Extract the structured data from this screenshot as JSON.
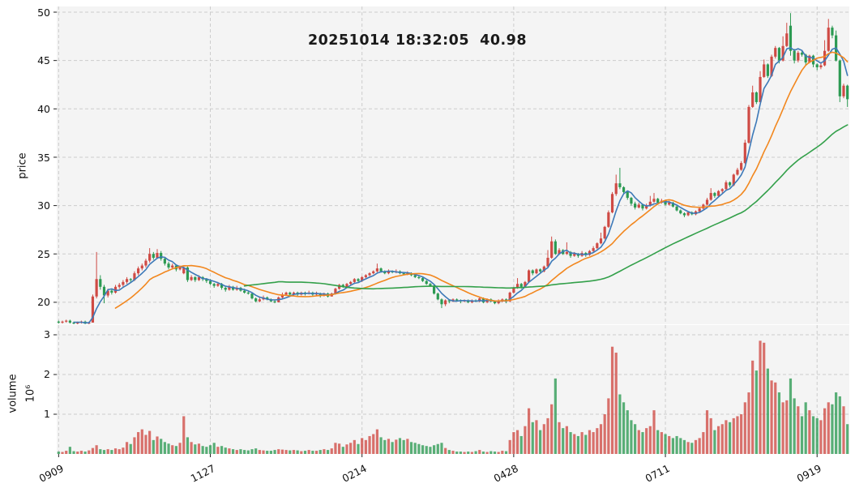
{
  "title": "20251014 18:32:05  40.98",
  "axes": {
    "price": {
      "label": "price",
      "ticks": [
        "20",
        "25",
        "30",
        "35",
        "40",
        "45",
        "50"
      ],
      "range": [
        17.5,
        50.6
      ]
    },
    "volume": {
      "label": "volume",
      "offset": "10⁶",
      "ticks": [
        "1",
        "2",
        "3"
      ],
      "range": [
        0,
        3.25
      ]
    },
    "x": {
      "labels": [
        "0909",
        "1127",
        "0214",
        "0428",
        "0711",
        "0919"
      ],
      "tick_indices": [
        0,
        40,
        80,
        120,
        160,
        200
      ]
    }
  },
  "colors": {
    "up": "#cf4a44",
    "down": "#2b9a52",
    "ma_fast": "#3d79b8",
    "ma_mid": "#f2871e",
    "ma_slow": "#33a04a",
    "panel_bg": "#f4f4f4",
    "grid": "#cccccc",
    "tick": "#222222",
    "volume_opacity": 0.78
  },
  "chart_data": {
    "type": "candlestick",
    "title": "20251014 18:32:05  40.98",
    "panels": [
      "price",
      "volume"
    ],
    "legend": "none",
    "grid": "dashed",
    "moving_averages": [
      {
        "name": "ma-fast",
        "window": 5,
        "color_key": "ma_fast"
      },
      {
        "name": "ma-mid",
        "window": 16,
        "color_key": "ma_mid"
      },
      {
        "name": "ma-slow",
        "window": 50,
        "color_key": "ma_slow"
      }
    ],
    "last_price": 40.98,
    "ohlc": [
      [
        18.0,
        18.1,
        17.8,
        17.9
      ],
      [
        17.9,
        18.1,
        17.8,
        18.0
      ],
      [
        18.0,
        18.2,
        17.9,
        18.1
      ],
      [
        18.1,
        18.2,
        17.8,
        17.9
      ],
      [
        17.9,
        18.0,
        17.7,
        17.8
      ],
      [
        17.8,
        18.0,
        17.7,
        17.9
      ],
      [
        17.9,
        18.1,
        17.8,
        18.0
      ],
      [
        18.0,
        18.1,
        17.7,
        17.8
      ],
      [
        17.8,
        18.0,
        17.7,
        17.9
      ],
      [
        17.9,
        20.8,
        17.9,
        20.6
      ],
      [
        20.6,
        25.2,
        20.4,
        22.4
      ],
      [
        22.4,
        22.8,
        21.3,
        21.6
      ],
      [
        21.6,
        21.8,
        19.9,
        20.7
      ],
      [
        20.7,
        21.4,
        20.5,
        21.2
      ],
      [
        21.2,
        21.4,
        20.8,
        21.0
      ],
      [
        21.0,
        21.8,
        20.9,
        21.6
      ],
      [
        21.6,
        22.0,
        21.4,
        21.8
      ],
      [
        21.8,
        22.3,
        21.6,
        22.1
      ],
      [
        22.1,
        22.6,
        21.9,
        22.4
      ],
      [
        22.4,
        22.5,
        22.0,
        22.3
      ],
      [
        22.3,
        23.2,
        22.2,
        23.0
      ],
      [
        23.0,
        23.7,
        22.8,
        23.5
      ],
      [
        23.5,
        24.0,
        23.3,
        23.8
      ],
      [
        23.8,
        24.5,
        23.6,
        24.3
      ],
      [
        24.3,
        25.6,
        24.1,
        25.0
      ],
      [
        25.0,
        25.2,
        24.4,
        24.6
      ],
      [
        24.6,
        25.5,
        24.5,
        25.1
      ],
      [
        25.1,
        25.3,
        24.3,
        24.5
      ],
      [
        24.5,
        24.7,
        23.8,
        24.0
      ],
      [
        24.0,
        24.2,
        23.4,
        23.6
      ],
      [
        23.6,
        24.0,
        23.4,
        23.8
      ],
      [
        23.8,
        23.9,
        23.2,
        23.4
      ],
      [
        23.4,
        23.8,
        23.3,
        23.6
      ],
      [
        23.0,
        23.7,
        22.9,
        23.6
      ],
      [
        23.6,
        23.7,
        22.1,
        22.3
      ],
      [
        22.3,
        22.8,
        22.2,
        22.6
      ],
      [
        22.6,
        22.7,
        22.1,
        22.3
      ],
      [
        22.3,
        22.8,
        22.2,
        22.6
      ],
      [
        22.6,
        22.7,
        22.2,
        22.4
      ],
      [
        22.4,
        22.5,
        22.0,
        22.2
      ],
      [
        22.2,
        22.4,
        21.8,
        21.9
      ],
      [
        21.9,
        22.0,
        21.5,
        21.7
      ],
      [
        21.7,
        22.1,
        21.6,
        21.9
      ],
      [
        21.9,
        22.0,
        21.3,
        21.5
      ],
      [
        21.5,
        21.6,
        21.1,
        21.3
      ],
      [
        21.3,
        21.8,
        21.2,
        21.6
      ],
      [
        21.6,
        21.7,
        21.2,
        21.3
      ],
      [
        21.3,
        21.7,
        21.2,
        21.5
      ],
      [
        21.5,
        21.6,
        21.1,
        21.2
      ],
      [
        21.2,
        21.4,
        20.9,
        21.0
      ],
      [
        21.0,
        21.2,
        20.8,
        20.9
      ],
      [
        20.9,
        21.0,
        20.3,
        20.4
      ],
      [
        20.4,
        20.5,
        20.0,
        20.1
      ],
      [
        20.1,
        20.5,
        20.0,
        20.3
      ],
      [
        20.3,
        20.7,
        20.2,
        20.5
      ],
      [
        20.5,
        20.6,
        20.2,
        20.3
      ],
      [
        20.3,
        20.4,
        20.0,
        20.1
      ],
      [
        20.1,
        20.3,
        19.9,
        20.0
      ],
      [
        20.0,
        20.6,
        20.0,
        20.5
      ],
      [
        20.5,
        21.0,
        20.4,
        20.8
      ],
      [
        20.8,
        21.1,
        20.7,
        21.0
      ],
      [
        21.0,
        21.1,
        20.7,
        20.8
      ],
      [
        20.8,
        21.1,
        20.7,
        21.0
      ],
      [
        21.0,
        21.1,
        20.6,
        20.8
      ],
      [
        20.8,
        21.1,
        20.7,
        21.0
      ],
      [
        21.0,
        21.1,
        20.7,
        20.9
      ],
      [
        20.9,
        21.2,
        20.8,
        21.0
      ],
      [
        21.0,
        21.1,
        20.6,
        20.8
      ],
      [
        20.8,
        21.1,
        20.7,
        20.9
      ],
      [
        20.9,
        21.0,
        20.5,
        20.7
      ],
      [
        20.7,
        21.0,
        20.6,
        20.9
      ],
      [
        20.9,
        21.0,
        20.5,
        20.6
      ],
      [
        20.6,
        21.0,
        20.6,
        20.9
      ],
      [
        20.9,
        21.5,
        20.8,
        21.4
      ],
      [
        21.4,
        21.9,
        21.3,
        21.8
      ],
      [
        21.8,
        21.9,
        21.5,
        21.6
      ],
      [
        21.6,
        22.0,
        21.5,
        21.9
      ],
      [
        21.9,
        22.2,
        21.8,
        22.1
      ],
      [
        22.1,
        22.5,
        22.0,
        22.4
      ],
      [
        22.4,
        22.5,
        22.1,
        22.2
      ],
      [
        22.2,
        22.7,
        22.1,
        22.6
      ],
      [
        22.6,
        22.9,
        22.5,
        22.8
      ],
      [
        22.8,
        23.1,
        22.7,
        23.0
      ],
      [
        23.0,
        23.3,
        22.9,
        23.2
      ],
      [
        23.2,
        24.0,
        23.1,
        23.5
      ],
      [
        23.5,
        23.6,
        23.1,
        23.2
      ],
      [
        23.2,
        23.3,
        22.9,
        23.0
      ],
      [
        23.0,
        23.4,
        22.9,
        23.2
      ],
      [
        23.2,
        23.3,
        23.0,
        23.1
      ],
      [
        23.1,
        23.4,
        23.0,
        23.2
      ],
      [
        23.2,
        23.3,
        22.9,
        23.0
      ],
      [
        23.0,
        23.1,
        22.8,
        22.9
      ],
      [
        22.9,
        23.2,
        22.8,
        23.0
      ],
      [
        23.0,
        23.1,
        22.7,
        22.8
      ],
      [
        22.8,
        22.9,
        22.5,
        22.6
      ],
      [
        22.6,
        22.8,
        22.4,
        22.5
      ],
      [
        22.5,
        22.6,
        22.1,
        22.2
      ],
      [
        22.2,
        22.3,
        21.8,
        21.9
      ],
      [
        21.9,
        22.0,
        21.6,
        21.7
      ],
      [
        21.7,
        21.8,
        20.8,
        20.9
      ],
      [
        20.9,
        21.0,
        20.2,
        20.3
      ],
      [
        20.3,
        20.4,
        19.4,
        19.8
      ],
      [
        19.8,
        20.3,
        19.6,
        20.2
      ],
      [
        20.2,
        20.3,
        19.9,
        20.1
      ],
      [
        20.1,
        20.4,
        20.0,
        20.3
      ],
      [
        20.3,
        20.4,
        20.1,
        20.2
      ],
      [
        20.2,
        20.3,
        19.9,
        20.1
      ],
      [
        20.1,
        20.3,
        20.0,
        20.2
      ],
      [
        20.2,
        20.3,
        19.9,
        20.0
      ],
      [
        20.0,
        20.3,
        19.9,
        20.2
      ],
      [
        20.2,
        20.3,
        20.0,
        20.1
      ],
      [
        20.1,
        20.5,
        20.0,
        20.4
      ],
      [
        20.4,
        20.5,
        19.9,
        20.0
      ],
      [
        20.0,
        20.4,
        19.9,
        20.3
      ],
      [
        20.3,
        20.4,
        20.0,
        20.1
      ],
      [
        20.1,
        20.2,
        19.8,
        19.9
      ],
      [
        19.9,
        20.3,
        19.8,
        20.2
      ],
      [
        20.2,
        20.4,
        20.0,
        20.3
      ],
      [
        20.3,
        20.4,
        19.9,
        20.1
      ],
      [
        20.1,
        21.1,
        20.0,
        21.0
      ],
      [
        21.0,
        21.6,
        20.9,
        21.5
      ],
      [
        21.5,
        22.5,
        21.4,
        21.9
      ],
      [
        21.9,
        22.0,
        21.4,
        21.6
      ],
      [
        21.6,
        22.2,
        21.5,
        22.1
      ],
      [
        22.1,
        23.4,
        22.0,
        23.3
      ],
      [
        23.3,
        23.4,
        22.8,
        23.0
      ],
      [
        23.0,
        23.5,
        22.9,
        23.4
      ],
      [
        23.4,
        23.5,
        23.0,
        23.2
      ],
      [
        23.2,
        23.8,
        23.1,
        23.7
      ],
      [
        23.7,
        25.4,
        23.6,
        24.6
      ],
      [
        24.6,
        26.8,
        24.5,
        26.3
      ],
      [
        26.3,
        26.5,
        24.9,
        25.0
      ],
      [
        25.0,
        25.6,
        24.9,
        25.4
      ],
      [
        25.4,
        25.5,
        24.9,
        25.0
      ],
      [
        25.0,
        26.2,
        24.9,
        25.2
      ],
      [
        25.2,
        25.3,
        24.6,
        24.8
      ],
      [
        24.8,
        25.2,
        24.7,
        25.0
      ],
      [
        25.0,
        25.1,
        24.6,
        24.8
      ],
      [
        24.8,
        25.3,
        24.7,
        25.1
      ],
      [
        25.1,
        25.2,
        24.7,
        24.9
      ],
      [
        24.9,
        25.4,
        24.8,
        25.3
      ],
      [
        25.3,
        25.8,
        25.2,
        25.6
      ],
      [
        25.6,
        26.2,
        25.5,
        26.1
      ],
      [
        26.1,
        27.2,
        26.0,
        26.6
      ],
      [
        26.6,
        27.9,
        26.5,
        27.8
      ],
      [
        27.8,
        29.5,
        27.7,
        29.3
      ],
      [
        29.3,
        31.4,
        29.2,
        31.2
      ],
      [
        31.2,
        33.2,
        31.0,
        32.3
      ],
      [
        32.3,
        33.9,
        31.7,
        31.9
      ],
      [
        31.9,
        32.0,
        31.2,
        31.4
      ],
      [
        31.4,
        31.5,
        30.6,
        30.8
      ],
      [
        30.8,
        30.9,
        30.0,
        30.2
      ],
      [
        30.2,
        30.4,
        29.6,
        29.8
      ],
      [
        29.8,
        30.3,
        29.7,
        30.1
      ],
      [
        30.1,
        30.2,
        29.5,
        29.7
      ],
      [
        29.7,
        30.2,
        29.6,
        30.0
      ],
      [
        30.0,
        31.0,
        29.9,
        30.4
      ],
      [
        30.4,
        31.3,
        30.3,
        30.7
      ],
      [
        30.7,
        30.8,
        30.1,
        30.3
      ],
      [
        30.3,
        30.7,
        30.2,
        30.5
      ],
      [
        30.5,
        30.6,
        30.0,
        30.1
      ],
      [
        30.1,
        30.5,
        30.0,
        30.3
      ],
      [
        30.3,
        30.4,
        29.8,
        29.9
      ],
      [
        29.9,
        30.0,
        29.4,
        29.5
      ],
      [
        29.5,
        29.6,
        29.1,
        29.2
      ],
      [
        29.2,
        29.3,
        28.8,
        29.0
      ],
      [
        29.0,
        29.4,
        28.9,
        29.3
      ],
      [
        29.3,
        29.4,
        29.0,
        29.1
      ],
      [
        29.1,
        29.5,
        29.0,
        29.4
      ],
      [
        29.4,
        29.8,
        29.3,
        29.7
      ],
      [
        29.7,
        30.2,
        29.6,
        30.1
      ],
      [
        30.1,
        30.8,
        30.0,
        30.6
      ],
      [
        30.6,
        31.8,
        30.5,
        31.3
      ],
      [
        31.3,
        31.4,
        30.8,
        31.0
      ],
      [
        31.0,
        31.6,
        30.9,
        31.5
      ],
      [
        31.5,
        31.8,
        31.3,
        31.7
      ],
      [
        31.7,
        32.6,
        31.6,
        32.4
      ],
      [
        32.4,
        32.5,
        31.9,
        32.1
      ],
      [
        32.1,
        33.3,
        32.0,
        33.2
      ],
      [
        33.2,
        33.9,
        33.1,
        33.7
      ],
      [
        33.7,
        34.6,
        33.6,
        34.4
      ],
      [
        34.4,
        36.8,
        34.3,
        36.5
      ],
      [
        36.5,
        40.4,
        36.4,
        40.2
      ],
      [
        40.2,
        42.4,
        40.1,
        41.7
      ],
      [
        41.7,
        41.8,
        40.5,
        40.7
      ],
      [
        40.7,
        43.9,
        40.6,
        43.3
      ],
      [
        43.3,
        45.1,
        43.2,
        44.6
      ],
      [
        44.6,
        44.7,
        43.2,
        43.4
      ],
      [
        43.4,
        45.6,
        43.3,
        45.4
      ],
      [
        45.4,
        46.5,
        45.2,
        46.3
      ],
      [
        46.3,
        46.4,
        44.7,
        45.0
      ],
      [
        45.0,
        47.5,
        44.9,
        46.5
      ],
      [
        46.5,
        48.9,
        46.4,
        47.8
      ],
      [
        48.6,
        49.9,
        45.5,
        46.0
      ],
      [
        46.0,
        46.2,
        44.7,
        45.0
      ],
      [
        45.0,
        46.0,
        44.8,
        45.8
      ],
      [
        45.8,
        46.1,
        45.4,
        45.6
      ],
      [
        45.6,
        45.7,
        44.5,
        44.8
      ],
      [
        44.8,
        45.6,
        44.7,
        45.5
      ],
      [
        45.5,
        45.6,
        44.3,
        44.6
      ],
      [
        44.6,
        44.7,
        44.0,
        44.3
      ],
      [
        44.3,
        44.8,
        44.1,
        44.5
      ],
      [
        44.5,
        47.1,
        44.4,
        46.0
      ],
      [
        46.0,
        49.3,
        45.9,
        48.4
      ],
      [
        48.4,
        48.6,
        47.3,
        47.6
      ],
      [
        47.6,
        48.1,
        44.9,
        45.0
      ],
      [
        45.0,
        45.1,
        40.7,
        41.3
      ],
      [
        41.3,
        42.6,
        41.1,
        42.4
      ],
      [
        42.4,
        42.5,
        40.2,
        41.0
      ]
    ],
    "volume_millions": [
      0.06,
      0.05,
      0.08,
      0.18,
      0.07,
      0.06,
      0.08,
      0.06,
      0.09,
      0.15,
      0.22,
      0.12,
      0.1,
      0.12,
      0.1,
      0.14,
      0.12,
      0.16,
      0.3,
      0.25,
      0.42,
      0.55,
      0.62,
      0.48,
      0.58,
      0.35,
      0.44,
      0.38,
      0.3,
      0.26,
      0.22,
      0.2,
      0.28,
      0.95,
      0.42,
      0.3,
      0.24,
      0.26,
      0.2,
      0.18,
      0.22,
      0.28,
      0.18,
      0.2,
      0.16,
      0.14,
      0.12,
      0.1,
      0.12,
      0.1,
      0.09,
      0.12,
      0.14,
      0.1,
      0.09,
      0.08,
      0.08,
      0.1,
      0.12,
      0.11,
      0.1,
      0.09,
      0.1,
      0.09,
      0.07,
      0.08,
      0.1,
      0.08,
      0.08,
      0.1,
      0.12,
      0.1,
      0.14,
      0.28,
      0.26,
      0.18,
      0.24,
      0.28,
      0.35,
      0.25,
      0.4,
      0.35,
      0.45,
      0.5,
      0.62,
      0.42,
      0.35,
      0.38,
      0.3,
      0.36,
      0.4,
      0.35,
      0.38,
      0.3,
      0.28,
      0.25,
      0.22,
      0.2,
      0.18,
      0.22,
      0.25,
      0.28,
      0.15,
      0.1,
      0.08,
      0.06,
      0.06,
      0.05,
      0.06,
      0.05,
      0.07,
      0.1,
      0.06,
      0.05,
      0.07,
      0.06,
      0.05,
      0.08,
      0.07,
      0.35,
      0.55,
      0.6,
      0.45,
      0.7,
      1.15,
      0.8,
      0.85,
      0.6,
      0.75,
      0.9,
      1.25,
      1.9,
      0.8,
      0.65,
      0.7,
      0.55,
      0.5,
      0.45,
      0.55,
      0.48,
      0.6,
      0.55,
      0.65,
      0.75,
      1.0,
      1.4,
      2.7,
      2.55,
      1.5,
      1.3,
      1.1,
      0.85,
      0.75,
      0.6,
      0.55,
      0.65,
      0.7,
      1.1,
      0.6,
      0.55,
      0.5,
      0.45,
      0.4,
      0.45,
      0.4,
      0.35,
      0.3,
      0.28,
      0.35,
      0.4,
      0.55,
      1.1,
      0.9,
      0.6,
      0.7,
      0.75,
      0.85,
      0.8,
      0.9,
      0.95,
      1.0,
      1.3,
      1.55,
      2.35,
      2.1,
      2.85,
      2.8,
      2.15,
      1.85,
      1.8,
      1.55,
      1.3,
      1.35,
      1.9,
      1.4,
      1.2,
      0.95,
      1.3,
      1.1,
      0.95,
      0.9,
      0.85,
      1.15,
      1.3,
      1.25,
      1.55,
      1.45,
      1.2,
      0.75
    ]
  }
}
